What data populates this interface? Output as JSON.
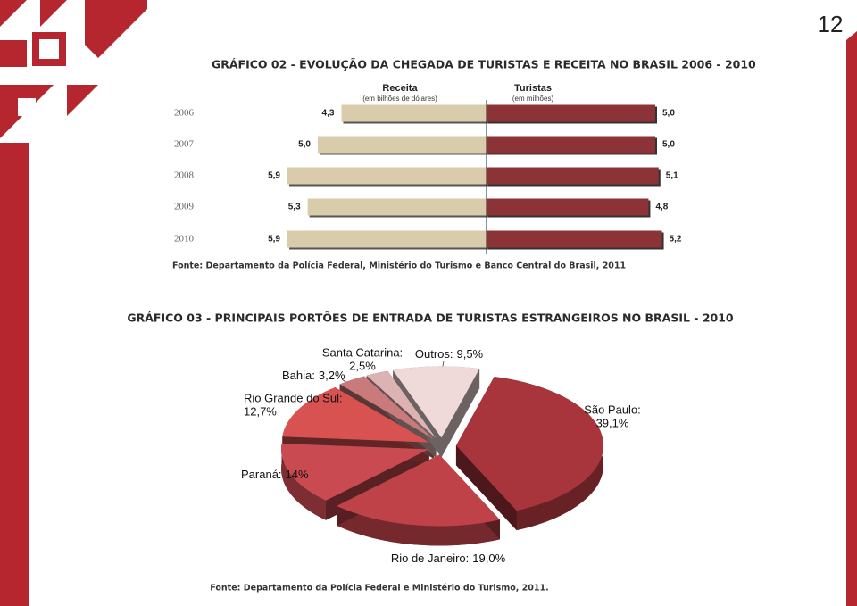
{
  "page_number": 12,
  "chart_data": [
    {
      "type": "butterfly",
      "title": "GRÁFICO 02 - EVOLUÇÃO DA CHEGADA DE TURISTAS E RECEITA NO BRASIL 2006 - 2010",
      "categories": [
        "2006",
        "2007",
        "2008",
        "2009",
        "2010"
      ],
      "series": [
        {
          "name": "Receita",
          "unit": "(em bilhões de dólares)",
          "color": "#d9ccaa",
          "values": [
            4.3,
            5.0,
            5.9,
            5.3,
            5.9
          ],
          "value_labels": [
            "4,3",
            "5,0",
            "5,9",
            "5,3",
            "5,9"
          ]
        },
        {
          "name": "Turistas",
          "unit": "(em milhões)",
          "color": "#8c3337",
          "values": [
            5.0,
            5.0,
            5.1,
            4.8,
            5.2
          ],
          "value_labels": [
            "5,0",
            "5,0",
            "5,1",
            "4,8",
            "5,2"
          ]
        }
      ],
      "source": "Fonte: Departamento da Polícia Federal, Ministério do Turismo e Banco Central do Brasil, 2011"
    },
    {
      "type": "pie",
      "title": "GRÁFICO 03 - PRINCIPAIS PORTÕES DE ENTRADA DE TURISTAS ESTRANGEIROS NO BRASIL - 2010",
      "categories": [
        "São Paulo:",
        "Rio de Janeiro:",
        "Paraná:",
        "Rio Grande do Sul:",
        "Bahia:",
        "Santa Catarina:",
        "Outros:"
      ],
      "values": [
        39.1,
        19.0,
        14,
        12.7,
        3.2,
        2.5,
        9.5
      ],
      "value_labels": [
        "39,1%",
        "19,0%",
        "14%",
        "12,7%",
        "3,2%",
        "2,5%",
        "9,5%"
      ],
      "colors": [
        "#a8353b",
        "#be4248",
        "#c94a50",
        "#d85252",
        "#c97a7a",
        "#dcb2b2",
        "#efd9d9"
      ],
      "source": "Fonte: Departamento da Polícia Federal e Ministério do Turismo, 2011."
    }
  ]
}
